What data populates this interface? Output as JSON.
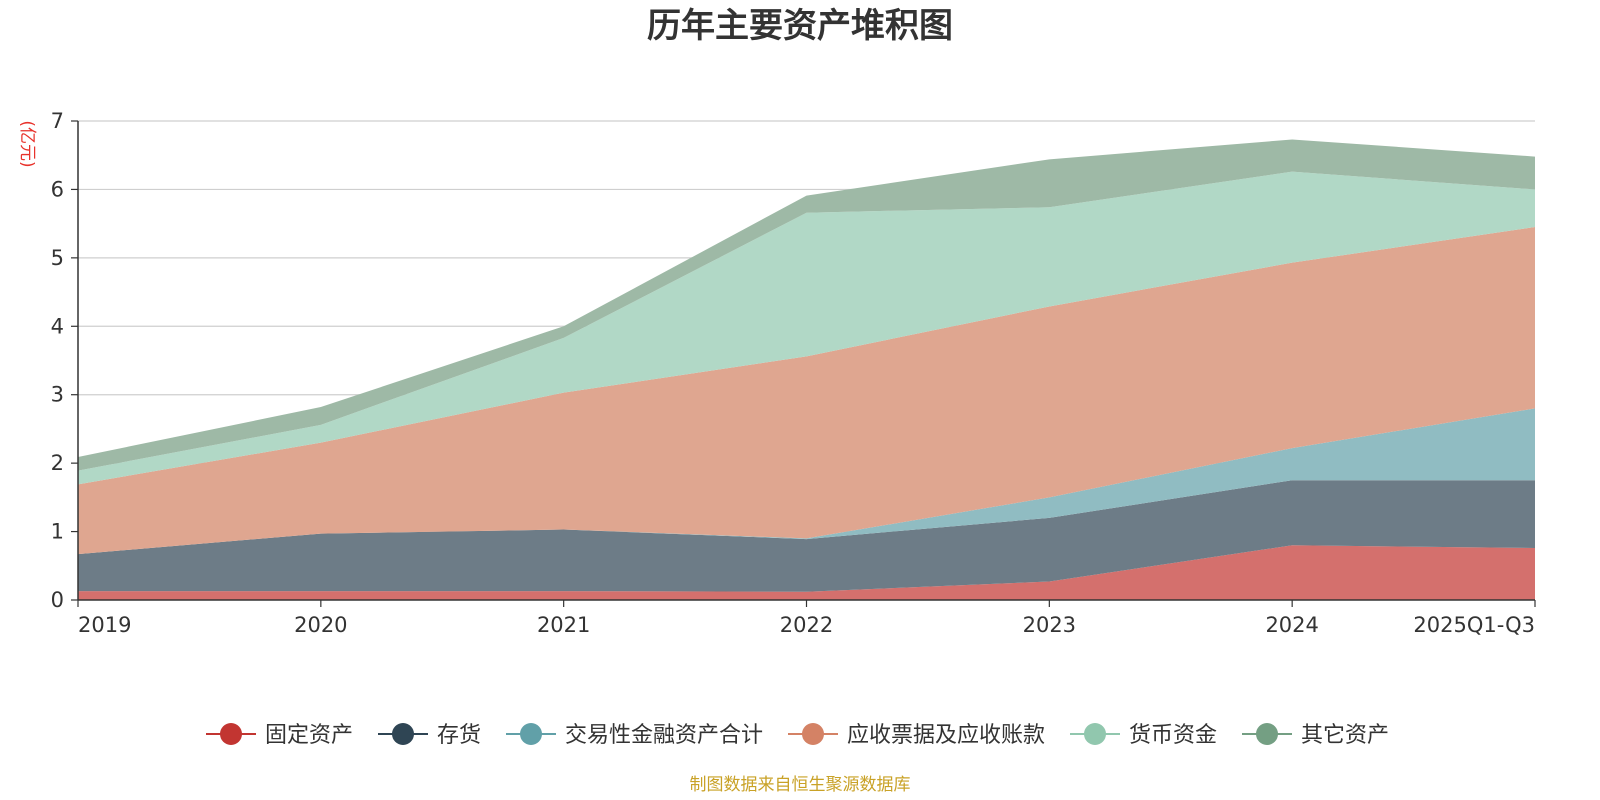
{
  "chart_data": {
    "type": "area",
    "stacked": true,
    "title": "历年主要资产堆积图",
    "unit_label": "(亿元)",
    "source": "制图数据来自恒生聚源数据库",
    "categories": [
      "2019",
      "2020",
      "2021",
      "2022",
      "2023",
      "2024",
      "2025Q1-Q3"
    ],
    "ylim": [
      0,
      7
    ],
    "yticks": [
      0,
      1,
      2,
      3,
      4,
      5,
      6,
      7
    ],
    "grid": true,
    "legend_position": "bottom",
    "series": [
      {
        "name": "固定资产",
        "color": "#c23531",
        "area_color": "#d4706d",
        "values": [
          0.13,
          0.13,
          0.13,
          0.12,
          0.27,
          0.8,
          0.76
        ]
      },
      {
        "name": "存货",
        "color": "#2f4554",
        "area_color": "#6d7c87",
        "values": [
          0.54,
          0.84,
          0.9,
          0.77,
          0.93,
          0.95,
          0.99
        ]
      },
      {
        "name": "交易性金融资产合计",
        "color": "#61a0a8",
        "area_color": "#90bcc2",
        "values": [
          0.0,
          0.0,
          0.0,
          0.01,
          0.3,
          0.47,
          1.05
        ]
      },
      {
        "name": "应收票据及应收账款",
        "color": "#d48265",
        "area_color": "#dfa690",
        "values": [
          1.02,
          1.33,
          2.0,
          2.66,
          2.79,
          2.71,
          2.65
        ]
      },
      {
        "name": "货币资金",
        "color": "#91c7ae",
        "area_color": "#b1d8c6",
        "values": [
          0.2,
          0.26,
          0.8,
          2.1,
          1.45,
          1.33,
          0.55
        ]
      },
      {
        "name": "其它资产",
        "color": "#749f83",
        "area_color": "#9eb9a6",
        "values": [
          0.2,
          0.26,
          0.17,
          0.25,
          0.7,
          0.47,
          0.48
        ]
      }
    ]
  }
}
